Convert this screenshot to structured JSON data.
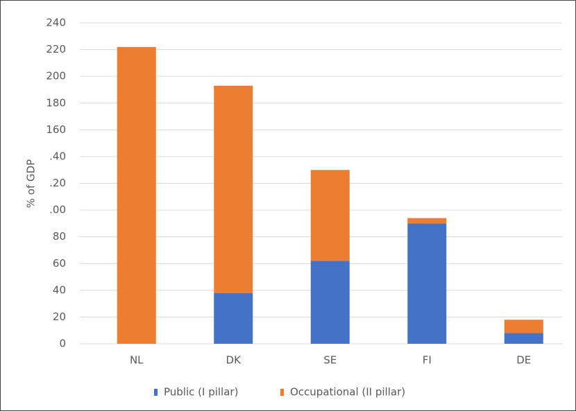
{
  "chart_data": {
    "type": "stacked_bar",
    "y_label": "% of GDP",
    "categories": [
      "NL",
      "DK",
      "SE",
      "FI",
      "DE"
    ],
    "series": [
      {
        "name": "Public (I pillar)",
        "color": "#4472c4",
        "values": [
          0,
          38,
          62,
          90,
          8
        ]
      },
      {
        "name": "Occupational (II pillar)",
        "color": "#ed7d31",
        "values": [
          222,
          155,
          68,
          4,
          10
        ]
      }
    ],
    "ylim": [
      0,
      240
    ],
    "yticks": [
      0,
      20,
      40,
      60,
      80,
      {
        "value": 100,
        "label": ".00"
      },
      {
        "value": 120,
        "label": ".20"
      },
      {
        "value": 140,
        "label": ".40"
      },
      160,
      180,
      200,
      220,
      240
    ],
    "grid": true,
    "legend": "bottom"
  }
}
